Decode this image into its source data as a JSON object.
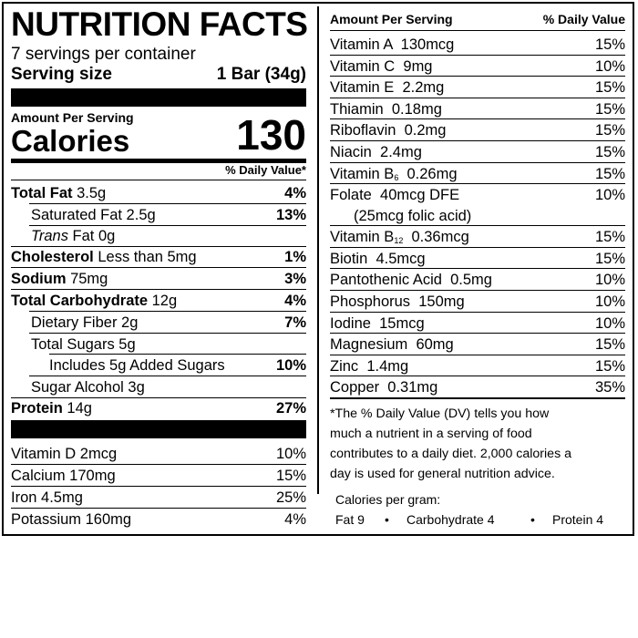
{
  "left": {
    "title": "NUTRITION FACTS",
    "servings_per_container": "7 servings per container",
    "serving_size_label": "Serving size",
    "serving_size_value": "1 Bar (34g)",
    "amount_per_serving": "Amount Per Serving",
    "calories_label": "Calories",
    "calories_value": "130",
    "dv_header": "% Daily Value*",
    "rows": [
      {
        "name": "Total Fat",
        "amount": " 3.5g",
        "dv": "4%"
      },
      {
        "name": "Saturated Fat 2.5g",
        "dv": "13%"
      },
      {
        "name_italic": "Trans",
        "name": " Fat 0g",
        "dv": ""
      },
      {
        "name": "Cholesterol",
        "amount": " Less than 5mg",
        "dv": "1%"
      },
      {
        "name": "Sodium",
        "amount": " 75mg",
        "dv": "3%"
      },
      {
        "name": "Total Carbohydrate",
        "amount": " 12g",
        "dv": "4%"
      },
      {
        "name": "Dietary Fiber 2g",
        "dv": "7%"
      },
      {
        "name": "Total Sugars 5g",
        "dv": ""
      },
      {
        "name": "Includes 5g Added Sugars",
        "dv": "10%"
      },
      {
        "name": "Sugar Alcohol 3g",
        "dv": ""
      },
      {
        "name": "Protein",
        "amount": " 14g",
        "dv": "27%"
      }
    ],
    "vitamins": [
      {
        "name": "Vitamin D 2mcg",
        "dv": "10%"
      },
      {
        "name": "Calcium 170mg",
        "dv": "15%"
      },
      {
        "name": "Iron 4.5mg",
        "dv": "25%"
      },
      {
        "name": "Potassium 160mg",
        "dv": "4%"
      }
    ]
  },
  "right": {
    "header_left": "Amount Per Serving",
    "header_right": "% Daily Value",
    "rows": [
      {
        "name": "Vitamin A  130mcg",
        "dv": "15%"
      },
      {
        "name": "Vitamin C  9mg",
        "dv": "10%"
      },
      {
        "name": "Vitamin E  2.2mg",
        "dv": "15%"
      },
      {
        "name": "Thiamin  0.18mg",
        "dv": "15%"
      },
      {
        "name": "Riboflavin  0.2mg",
        "dv": "15%"
      },
      {
        "name": "Niacin  2.4mg",
        "dv": "15%"
      },
      {
        "name": "Vitamin B",
        "sub": "6",
        "rest": "  0.26mg",
        "dv": "15%"
      },
      {
        "name": "Folate  40mcg DFE",
        "line2": "(25mcg folic acid)",
        "dv": "10%"
      },
      {
        "name": "Vitamin B",
        "sub": "12",
        "rest": "  0.36mcg",
        "dv": "15%"
      },
      {
        "name": "Biotin  4.5mcg",
        "dv": "15%"
      },
      {
        "name": "Pantothenic Acid  0.5mg",
        "dv": "10%"
      },
      {
        "name": "Phosphorus  150mg",
        "dv": "10%"
      },
      {
        "name": "Iodine  15mcg",
        "dv": "10%"
      },
      {
        "name": "Magnesium  60mg",
        "dv": "15%"
      },
      {
        "name": "Zinc  1.4mg",
        "dv": "15%"
      },
      {
        "name": "Copper  0.31mg",
        "dv": "35%"
      }
    ],
    "footnote": [
      "*The % Daily Value (DV) tells you how",
      "much a nutrient in a serving of food",
      "contributes to a daily diet. 2,000 calories a",
      "day is used for general nutrition advice."
    ],
    "calories_per_gram_label": "Calories per gram:",
    "fat": "Fat 9",
    "carb": "Carbohydrate 4",
    "protein": "Protein 4",
    "bullet": "•"
  }
}
